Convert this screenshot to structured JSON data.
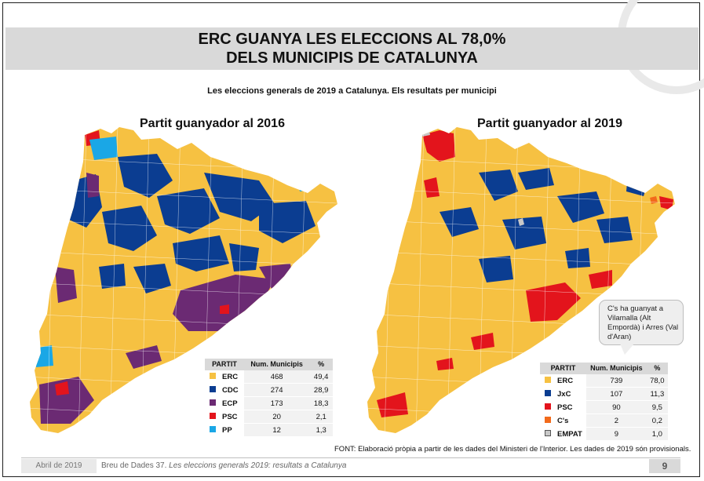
{
  "header": {
    "title_line1": "ERC GUANYA LES ELECCIONS AL 78,0%",
    "title_line2": "DELS MUNICIPIS DE CATALUNYA",
    "subtitle": "Les eleccions generals de 2019 a Catalunya. Els resultats per municipi"
  },
  "maps": [
    {
      "title": "Partit guanyador al 2016",
      "legend": {
        "col_party": "PARTIT",
        "col_num": "Num. Municipis",
        "col_pct": "%",
        "rows": [
          {
            "party": "ERC",
            "num": "468",
            "pct": "49,4",
            "color": "#f6c142"
          },
          {
            "party": "CDC",
            "num": "274",
            "pct": "28,9",
            "color": "#0b3d91"
          },
          {
            "party": "ECP",
            "num": "173",
            "pct": "18,3",
            "color": "#6b2a73"
          },
          {
            "party": "PSC",
            "num": "20",
            "pct": "2,1",
            "color": "#e3141c"
          },
          {
            "party": "PP",
            "num": "12",
            "pct": "1,3",
            "color": "#1aa7e6"
          }
        ]
      }
    },
    {
      "title": "Partit guanyador al 2019",
      "legend": {
        "col_party": "PARTIT",
        "col_num": "Num. Municipis",
        "col_pct": "%",
        "rows": [
          {
            "party": "ERC",
            "num": "739",
            "pct": "78,0",
            "color": "#f6c142"
          },
          {
            "party": "JxC",
            "num": "107",
            "pct": "11,3",
            "color": "#0b3d91"
          },
          {
            "party": "PSC",
            "num": "90",
            "pct": "9,5",
            "color": "#e3141c"
          },
          {
            "party": "C's",
            "num": "2",
            "pct": "0,2",
            "color": "#f26a1b"
          },
          {
            "party": "EMPAT",
            "num": "9",
            "pct": "1,0",
            "color": "#c8c8c8"
          }
        ]
      }
    }
  ],
  "callout": {
    "text": "C's ha guanyat a Vilamalla (Alt Empordà) i Arres (Val d'Aran)"
  },
  "source": "FONT: Elaboració pròpia a partir de les dades del Ministeri de l'Interior. Les dades de 2019 són provisionals.",
  "footer": {
    "date": "Abril de 2019",
    "doc_prefix": "Breu de Dades 37.",
    "doc_title": "Les eleccions generals 2019: resultats a Catalunya",
    "page": "9"
  }
}
